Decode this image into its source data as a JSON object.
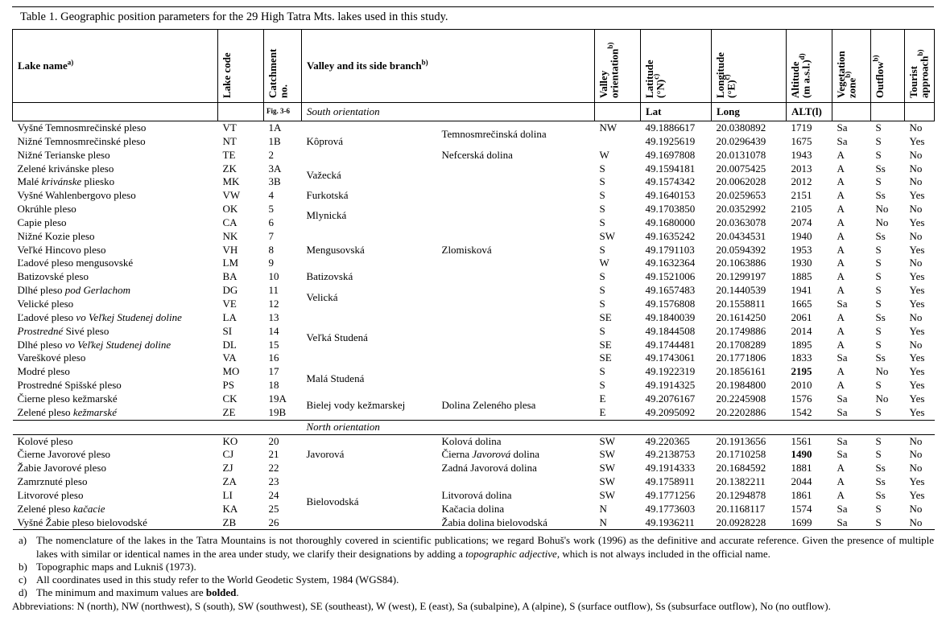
{
  "title": "Table 1. Geographic position parameters for the 29 High Tatra Mts. lakes used in this study.",
  "table": {
    "columns": [
      {
        "key": "name",
        "label": "Lake name",
        "sup": "a)",
        "rot": false
      },
      {
        "key": "code",
        "label": "Lake code",
        "rot": true
      },
      {
        "key": "no",
        "label": "Catchment\nno.",
        "rot": true
      },
      {
        "key": "valley",
        "label": "Valley and its side branch",
        "sup": "b)",
        "rot": false,
        "colspan": 2
      },
      {
        "key": "orient",
        "label": "Valley\norientation",
        "sup": "b)",
        "rot": true
      },
      {
        "key": "lat",
        "label": "Latitude\n(°N)",
        "sup": "c)",
        "rot": true
      },
      {
        "key": "lon",
        "label": "Longitude\n(°E)",
        "sup": "c)",
        "rot": true
      },
      {
        "key": "alt",
        "label": "Altitude\n(m a.s.l.)",
        "sup": "d)",
        "rot": true
      },
      {
        "key": "veg",
        "label": "Vegetation\nzone",
        "sup": "b)",
        "rot": true
      },
      {
        "key": "out",
        "label": "Outflow",
        "sup": "b)",
        "rot": true
      },
      {
        "key": "tour",
        "label": "Tourist\napproach",
        "sup": "b)",
        "rot": true
      }
    ],
    "subheader": {
      "cells": [
        {
          "key": "name",
          "text": ""
        },
        {
          "key": "code",
          "text": ""
        },
        {
          "key": "fig",
          "text": "Fig. 3-6",
          "small": true,
          "bold": true
        },
        {
          "key": "south",
          "text": "South orientation",
          "italic": true,
          "colspan": 2
        },
        {
          "key": "orient",
          "text": ""
        },
        {
          "key": "lat",
          "text": "Lat",
          "bold": true
        },
        {
          "key": "long",
          "text": "Long",
          "bold": true
        },
        {
          "key": "alt",
          "text": "ALT(l)",
          "bold": true
        },
        {
          "key": "veg",
          "text": ""
        },
        {
          "key": "out",
          "text": ""
        },
        {
          "key": "tour",
          "text": ""
        }
      ]
    },
    "sections": [
      {
        "label": null,
        "rows": [
          {
            "name": [
              "Vyšné Temnosmrečinské pleso"
            ],
            "code": "VT",
            "no": "1A",
            "valley": "Kôprová",
            "vspan": 3,
            "branch": [
              "Temnosmrečinská dolina"
            ],
            "bspan": 2,
            "orient": "NW",
            "lat": "49.1886617",
            "lon": "20.0380892",
            "alt": "1719",
            "altBold": false,
            "veg": "Sa",
            "out": "S",
            "tour": "No"
          },
          {
            "name": [
              "Nižné Temnosmrečinské pleso"
            ],
            "code": "NT",
            "no": "1B",
            "valley": null,
            "branch": null,
            "orient": "",
            "lat": "49.1925619",
            "lon": "20.0296439",
            "alt": "1675",
            "altBold": false,
            "veg": "Sa",
            "out": "S",
            "tour": "Yes"
          },
          {
            "name": [
              "Nižné Terianske pleso"
            ],
            "code": "TE",
            "no": "2",
            "valley": null,
            "branch": [
              "Nefcerská dolina"
            ],
            "bspan": 1,
            "orient": "W",
            "lat": "49.1697808",
            "lon": "20.0131078",
            "alt": "1943",
            "altBold": false,
            "veg": "A",
            "out": "S",
            "tour": "No"
          },
          {
            "name": [
              "Zelené krivánske pleso"
            ],
            "code": "ZK",
            "no": "3A",
            "valley": "Važecká",
            "vspan": 2,
            "branch": [],
            "bspan": 1,
            "orient": "S",
            "lat": "49.1594181",
            "lon": "20.0075425",
            "alt": "2013",
            "altBold": false,
            "veg": "A",
            "out": "Ss",
            "tour": "No"
          },
          {
            "name": [
              "Malé ",
              [
                "krivánske",
                "i"
              ],
              " pliesko"
            ],
            "code": "MK",
            "no": "3B",
            "valley": null,
            "branch": [],
            "bspan": 1,
            "orient": "S",
            "lat": "49.1574342",
            "lon": "20.0062028",
            "alt": "2012",
            "altBold": false,
            "veg": "A",
            "out": "S",
            "tour": "No"
          },
          {
            "name": [
              "Vyšné Wahlenbergovo pleso"
            ],
            "code": "VW",
            "no": "4",
            "valley": "Furkotská",
            "vspan": 1,
            "branch": [],
            "bspan": 1,
            "orient": "S",
            "lat": "49.1640153",
            "lon": "20.0259653",
            "alt": "2151",
            "altBold": false,
            "veg": "A",
            "out": "Ss",
            "tour": "Yes"
          },
          {
            "name": [
              "Okrúhle pleso"
            ],
            "code": "OK",
            "no": "5",
            "valley": "Mlynická",
            "vspan": 2,
            "branch": [],
            "bspan": 1,
            "orient": "S",
            "lat": "49.1703850",
            "lon": "20.0352992",
            "alt": "2105",
            "altBold": false,
            "veg": "A",
            "out": "No",
            "tour": "No"
          },
          {
            "name": [
              "Capie pleso"
            ],
            "code": "CA",
            "no": "6",
            "valley": null,
            "branch": [],
            "bspan": 1,
            "orient": "S",
            "lat": "49.1680000",
            "lon": "20.0363078",
            "alt": "2074",
            "altBold": false,
            "veg": "A",
            "out": "No",
            "tour": "Yes"
          },
          {
            "name": [
              "Nižné Kozie pleso"
            ],
            "code": "NK",
            "no": "7",
            "valley": "Mengusovská",
            "vspan": 3,
            "branch": [
              "Zlomisková"
            ],
            "bspan": 3,
            "orient": "SW",
            "lat": "49.1635242",
            "lon": "20.0434531",
            "alt": "1940",
            "altBold": false,
            "veg": "A",
            "out": "Ss",
            "tour": "No"
          },
          {
            "name": [
              "Veľké Hincovo pleso"
            ],
            "code": "VH",
            "no": "8",
            "valley": null,
            "branch": null,
            "orient": "S",
            "lat": "49.1791103",
            "lon": "20.0594392",
            "alt": "1953",
            "altBold": false,
            "veg": "A",
            "out": "S",
            "tour": "Yes"
          },
          {
            "name": [
              "Ľadové pleso mengusovské"
            ],
            "code": "LM",
            "no": "9",
            "valley": null,
            "branch": null,
            "orient": "W",
            "lat": "49.1632364",
            "lon": "20.1063886",
            "alt": "1930",
            "altBold": false,
            "veg": "A",
            "out": "S",
            "tour": "No"
          },
          {
            "name": [
              "Batizovské pleso"
            ],
            "code": "BA",
            "no": "10",
            "valley": "Batizovská",
            "vspan": 1,
            "branch": [],
            "bspan": 1,
            "orient": "S",
            "lat": "49.1521006",
            "lon": "20.1299197",
            "alt": "1885",
            "altBold": false,
            "veg": "A",
            "out": "S",
            "tour": "Yes"
          },
          {
            "name": [
              "Dlhé pleso ",
              [
                "pod Gerlachom",
                "i"
              ]
            ],
            "code": "DG",
            "no": "11",
            "valley": "Velická",
            "vspan": 2,
            "branch": [],
            "bspan": 1,
            "orient": "S",
            "lat": "49.1657483",
            "lon": "20.1440539",
            "alt": "1941",
            "altBold": false,
            "veg": "A",
            "out": "S",
            "tour": "Yes"
          },
          {
            "name": [
              "Velické pleso"
            ],
            "code": "VE",
            "no": "12",
            "valley": null,
            "branch": [],
            "bspan": 1,
            "orient": "S",
            "lat": "49.1576808",
            "lon": "20.1558811",
            "alt": "1665",
            "altBold": false,
            "veg": "Sa",
            "out": "S",
            "tour": "Yes"
          },
          {
            "name": [
              "Ľadové pleso ",
              [
                "vo Veľkej Studenej doline",
                "i"
              ]
            ],
            "code": "LA",
            "no": "13",
            "valley": "Veľká Studená",
            "vspan": 4,
            "branch": [],
            "bspan": 1,
            "orient": "SE",
            "lat": "49.1840039",
            "lon": "20.1614250",
            "alt": "2061",
            "altBold": false,
            "veg": "A",
            "out": "Ss",
            "tour": "No"
          },
          {
            "name": [
              [
                "Prostredné",
                "i"
              ],
              " Sivé pleso"
            ],
            "code": "SI",
            "no": "14",
            "valley": null,
            "branch": [],
            "bspan": 1,
            "orient": "S",
            "lat": "49.1844508",
            "lon": "20.1749886",
            "alt": "2014",
            "altBold": false,
            "veg": "A",
            "out": "S",
            "tour": "Yes"
          },
          {
            "name": [
              "Dlhé pleso ",
              [
                "vo Veľkej Studenej doline",
                "i"
              ]
            ],
            "code": "DL",
            "no": "15",
            "valley": null,
            "branch": [],
            "bspan": 1,
            "orient": "SE",
            "lat": "49.1744481",
            "lon": "20.1708289",
            "alt": "1895",
            "altBold": false,
            "veg": "A",
            "out": "S",
            "tour": "No"
          },
          {
            "name": [
              "Vareškové pleso"
            ],
            "code": "VA",
            "no": "16",
            "valley": null,
            "branch": [],
            "bspan": 1,
            "orient": "SE",
            "lat": "49.1743061",
            "lon": "20.1771806",
            "alt": "1833",
            "altBold": false,
            "veg": "Sa",
            "out": "Ss",
            "tour": "Yes"
          },
          {
            "name": [
              "Modré pleso"
            ],
            "code": "MO",
            "no": "17",
            "valley": "Malá Studená",
            "vspan": 2,
            "branch": [],
            "bspan": 1,
            "orient": "S",
            "lat": "49.1922319",
            "lon": "20.1856161",
            "alt": "2195",
            "altBold": true,
            "veg": "A",
            "out": "No",
            "tour": "Yes"
          },
          {
            "name": [
              "Prostredné Spišské pleso"
            ],
            "code": "PS",
            "no": "18",
            "valley": null,
            "branch": [],
            "bspan": 1,
            "orient": "S",
            "lat": "49.1914325",
            "lon": "20.1984800",
            "alt": "2010",
            "altBold": false,
            "veg": "A",
            "out": "S",
            "tour": "Yes"
          },
          {
            "name": [
              "Čierne pleso kežmarské"
            ],
            "code": "CK",
            "no": "19A",
            "valley": "Bielej vody kežmarskej",
            "vspan": 2,
            "branch": [
              "Dolina Zeleného plesa"
            ],
            "bspan": 2,
            "orient": "E",
            "lat": "49.2076167",
            "lon": "20.2245908",
            "alt": "1576",
            "altBold": false,
            "veg": "Sa",
            "out": "No",
            "tour": "Yes"
          },
          {
            "name": [
              "Zelené pleso ",
              [
                "kežmarské",
                "i"
              ]
            ],
            "code": "ZE",
            "no": "19B",
            "valley": null,
            "branch": null,
            "orient": "E",
            "lat": "49.2095092",
            "lon": "20.2202886",
            "alt": "1542",
            "altBold": false,
            "veg": "Sa",
            "out": "S",
            "tour": "Yes"
          }
        ]
      },
      {
        "label": "North orientation",
        "rows": [
          {
            "name": [
              "Kolové pleso"
            ],
            "code": "KO",
            "no": "20",
            "valley": "Javorová",
            "vspan": 3,
            "branch": [
              "Kolová dolina"
            ],
            "bspan": 1,
            "orient": "SW",
            "lat": "49.220365",
            "lon": "20.1913656",
            "alt": "1561",
            "altBold": false,
            "veg": "Sa",
            "out": "S",
            "tour": "No"
          },
          {
            "name": [
              "Čierne Javorové pleso"
            ],
            "code": "CJ",
            "no": "21",
            "valley": null,
            "branch": [
              "Čierna ",
              [
                "Javorová",
                "i"
              ],
              " dolina"
            ],
            "bspan": 1,
            "orient": "SW",
            "lat": "49.2138753",
            "lon": "20.1710258",
            "alt": "1490",
            "altBold": true,
            "veg": "Sa",
            "out": "S",
            "tour": "No"
          },
          {
            "name": [
              "Žabie Javorové pleso"
            ],
            "code": "ZJ",
            "no": "22",
            "valley": null,
            "branch": [
              "Zadná Javorová dolina"
            ],
            "bspan": 1,
            "orient": "SW",
            "lat": "49.1914333",
            "lon": "20.1684592",
            "alt": "1881",
            "altBold": false,
            "veg": "A",
            "out": "Ss",
            "tour": "No"
          },
          {
            "name": [
              "Zamrznuté pleso"
            ],
            "code": "ZA",
            "no": "23",
            "valley": "Bielovodská",
            "vspan": 4,
            "branch": [],
            "bspan": 1,
            "orient": "SW",
            "lat": "49.1758911",
            "lon": "20.1382211",
            "alt": "2044",
            "altBold": false,
            "veg": "A",
            "out": "Ss",
            "tour": "Yes"
          },
          {
            "name": [
              "Litvorové pleso"
            ],
            "code": "LI",
            "no": "24",
            "valley": null,
            "branch": [
              "Litvorová dolina"
            ],
            "bspan": 1,
            "orient": "SW",
            "lat": "49.1771256",
            "lon": "20.1294878",
            "alt": "1861",
            "altBold": false,
            "veg": "A",
            "out": "Ss",
            "tour": "Yes"
          },
          {
            "name": [
              "Zelené pleso ",
              [
                "kačacie",
                "i"
              ]
            ],
            "code": "KA",
            "no": "25",
            "valley": null,
            "branch": [
              "Kačacia dolina"
            ],
            "bspan": 1,
            "orient": "N",
            "lat": "49.1773603",
            "lon": "20.1168117",
            "alt": "1574",
            "altBold": false,
            "veg": "Sa",
            "out": "S",
            "tour": "No"
          },
          {
            "name": [
              "Vyšné Žabie pleso bielovodské"
            ],
            "code": "ZB",
            "no": "26",
            "valley": null,
            "branch": [
              "Žabia dolina bielovodská"
            ],
            "bspan": 1,
            "orient": "N",
            "lat": "49.1936211",
            "lon": "20.0928228",
            "alt": "1699",
            "altBold": false,
            "veg": "Sa",
            "out": "S",
            "tour": "No"
          }
        ]
      }
    ]
  },
  "footnotes": [
    {
      "label": "a)",
      "segments": [
        "The nomenclature of the lakes in the Tatra Mountains is not thoroughly covered in scientific publications; we regard Bohuš's work (1996) as the definitive and accurate reference. Given the presence of multiple lakes with similar or identical names in the area under study, we clarify their designations by adding a ",
        [
          "topographic adjective",
          "i"
        ],
        ", which is not always included in the official name."
      ]
    },
    {
      "label": "b)",
      "segments": [
        "Topographic maps and Lukniš (1973)."
      ]
    },
    {
      "label": "c)",
      "segments": [
        "All coordinates used in this study refer to the World Geodetic System, 1984 (WGS84)."
      ]
    },
    {
      "label": "d)",
      "segments": [
        "The minimum and maximum values are ",
        [
          "bolded",
          "b"
        ],
        "."
      ]
    }
  ],
  "abbreviations": [
    "Abbreviations: N (north), NW (northwest), S (south), SW (southwest), SE (southeast), W (west), E (east), Sa (subalpine), A (alpine), S (surface outflow), Ss (subsurface outflow), No (no outflow)."
  ]
}
